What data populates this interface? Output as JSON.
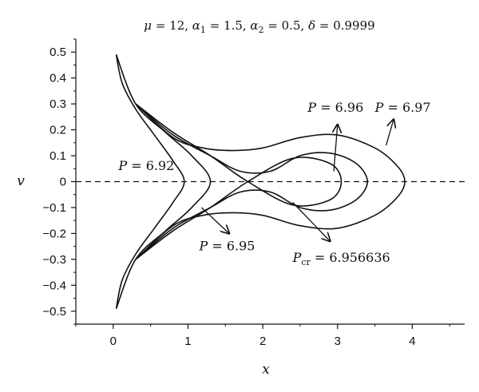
{
  "chart_data": {
    "type": "line",
    "title_parts": {
      "mu_sym": "μ",
      "mu_val": " = 12, ",
      "a1_sym": "α",
      "a1_sub": "1",
      "a1_val": " = 1.5, ",
      "a2_sym": "α",
      "a2_sub": "2",
      "a2_val": " = 0.5, ",
      "d_sym": "δ",
      "d_val": " = 0.9999"
    },
    "xlabel": "x",
    "ylabel": "v",
    "xlim": [
      -0.5,
      4.7
    ],
    "ylim": [
      -0.55,
      0.55
    ],
    "x_ticks": [
      "0",
      "1",
      "2",
      "3",
      "4"
    ],
    "x_tick_values": [
      0,
      1,
      2,
      3,
      4
    ],
    "y_ticks": [
      "0.5",
      "0.4",
      "0.3",
      "0.2",
      "0.1",
      "0",
      "−0.1",
      "−0.2",
      "−0.3",
      "−0.4",
      "−0.5"
    ],
    "y_tick_values": [
      0.5,
      0.4,
      0.3,
      0.2,
      0.1,
      0,
      -0.1,
      -0.2,
      -0.3,
      -0.4,
      -0.5
    ],
    "grid": false,
    "series": [
      {
        "name": "P = 6.92",
        "x": [
          0.04,
          0.12,
          0.3,
          0.55,
          0.8,
          0.95,
          0.8,
          0.55,
          0.3,
          0.12,
          0.04
        ],
        "y": [
          0.49,
          0.38,
          0.28,
          0.18,
          0.08,
          0,
          -0.08,
          -0.18,
          -0.28,
          -0.38,
          -0.49
        ]
      },
      {
        "name": "P = 6.95",
        "x": [
          0.04,
          0.3,
          0.7,
          1.05,
          1.3,
          1.05,
          0.7,
          0.3,
          0.04
        ],
        "y": [
          0.49,
          0.3,
          0.19,
          0.1,
          0,
          -0.1,
          -0.19,
          -0.3,
          -0.49
        ]
      },
      {
        "name": "P_cr = 6.956636",
        "x": [
          0.3,
          0.8,
          1.3,
          1.8,
          2.4,
          2.9,
          3.05,
          2.9,
          2.4,
          1.8,
          1.3,
          0.8,
          0.3
        ],
        "y": [
          0.3,
          0.19,
          0.1,
          0,
          -0.09,
          -0.07,
          0,
          0.07,
          0.09,
          0,
          -0.1,
          -0.19,
          -0.3
        ]
      },
      {
        "name": "P = 6.96",
        "x": [
          0.3,
          0.8,
          1.3,
          1.7,
          2.1,
          2.5,
          2.9,
          3.25,
          3.4,
          3.25,
          2.9,
          2.5,
          2.1,
          1.7,
          1.3,
          0.8,
          0.3
        ],
        "y": [
          0.3,
          0.18,
          0.1,
          0.04,
          0.04,
          0.1,
          0.11,
          0.07,
          0,
          -0.07,
          -0.11,
          -0.1,
          -0.04,
          -0.04,
          -0.1,
          -0.18,
          -0.3
        ]
      },
      {
        "name": "P = 6.97",
        "x": [
          0.3,
          0.8,
          1.2,
          1.6,
          2.0,
          2.5,
          3.0,
          3.5,
          3.8,
          3.9,
          3.8,
          3.5,
          3.0,
          2.5,
          2.0,
          1.6,
          1.2,
          0.8,
          0.3
        ],
        "y": [
          0.3,
          0.17,
          0.13,
          0.12,
          0.13,
          0.17,
          0.18,
          0.13,
          0.06,
          0,
          -0.06,
          -0.13,
          -0.18,
          -0.17,
          -0.13,
          -0.12,
          -0.13,
          -0.17,
          -0.3
        ]
      }
    ],
    "baseline_y": 0,
    "annotations": [
      {
        "prefix": "P",
        "sub": "",
        "text": " = 6.92",
        "label_x": 0.07,
        "label_y": 0.045,
        "arrow": null
      },
      {
        "prefix": "P",
        "sub": "",
        "text": " = 6.95",
        "label_x": 1.15,
        "label_y": -0.265,
        "arrow": {
          "from": [
            1.18,
            -0.1
          ],
          "to": [
            1.55,
            -0.2
          ]
        }
      },
      {
        "prefix": "P",
        "sub": "cr",
        "text": " = 6.956636",
        "label_x": 2.4,
        "label_y": -0.31,
        "arrow": {
          "from": [
            2.4,
            -0.08
          ],
          "to": [
            2.9,
            -0.23
          ]
        }
      },
      {
        "prefix": "P",
        "sub": "",
        "text": " = 6.96",
        "label_x": 2.6,
        "label_y": 0.27,
        "arrow": {
          "from": [
            2.95,
            0.04
          ],
          "to": [
            3.0,
            0.22
          ]
        }
      },
      {
        "prefix": "P",
        "sub": "",
        "text": " = 6.97",
        "label_x": 3.5,
        "label_y": 0.27,
        "arrow": {
          "from": [
            3.65,
            0.14
          ],
          "to": [
            3.75,
            0.24
          ]
        }
      }
    ]
  }
}
